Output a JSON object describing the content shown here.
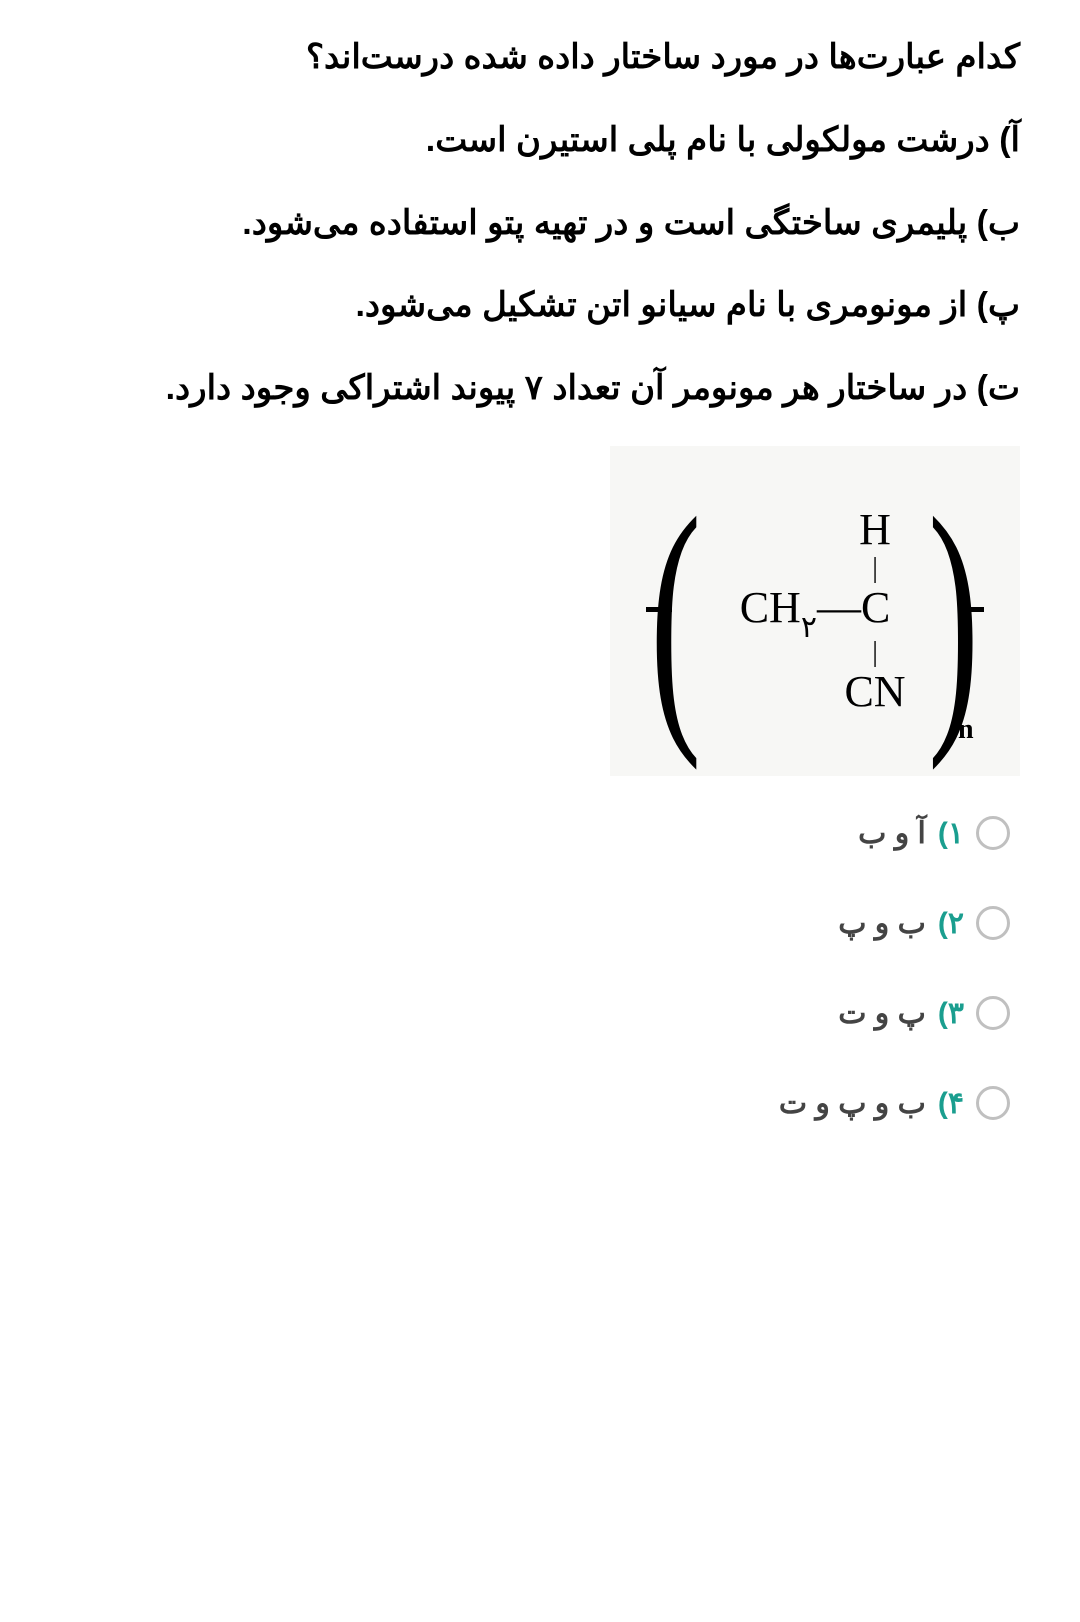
{
  "question": "کدام عبارت‌ها در مورد ساختار داده شده درست‌اند؟",
  "statements": {
    "a": "آ) درشت مولکولی با نام پلی استیرن است.",
    "b": "ب) پلیمری ساختگی است و در تهیه پتو استفاده می‌شود.",
    "p": "پ) از مونومری با نام سیانو اتن تشکیل می‌شود.",
    "t": "ت) در ساختار هر مونومر آن تعداد ۷ پیوند اشتراکی وجود دارد."
  },
  "structure": {
    "h_label": "H",
    "ch2_label_c": "CH",
    "ch2_sub": "۲",
    "dash": "—",
    "c_label": "C",
    "cn_label": "CN",
    "subscript_n": "n"
  },
  "options": {
    "opt1": {
      "num": "۱)",
      "text": "آ و ب"
    },
    "opt2": {
      "num": "۲)",
      "text": "ب و پ"
    },
    "opt3": {
      "num": "۳)",
      "text": "پ و ت"
    },
    "opt4": {
      "num": "۴)",
      "text": "ب و پ و ت"
    }
  },
  "colors": {
    "text": "#000000",
    "option_num": "#1a9e8f",
    "option_text": "#444444",
    "radio_border": "#c0c0c0",
    "structure_bg": "#f7f7f5"
  }
}
